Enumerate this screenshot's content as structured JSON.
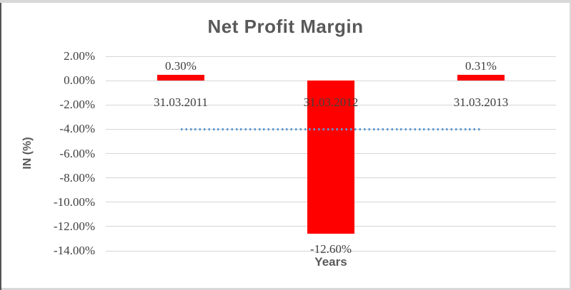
{
  "chart_data": {
    "type": "bar",
    "title": "Net Profit Margin",
    "xlabel": "Years",
    "ylabel": "IN (%)",
    "categories": [
      "31.03.2011",
      "31.03.2012",
      "31.03.2013"
    ],
    "values": [
      0.3,
      -12.6,
      0.31
    ],
    "data_labels": [
      "0.30%",
      "-12.60%",
      "0.31%"
    ],
    "yticks": [
      {
        "value": 2,
        "label": "2.00%"
      },
      {
        "value": 0,
        "label": "0.00%"
      },
      {
        "value": -2,
        "label": "-2.00%"
      },
      {
        "value": -4,
        "label": "-4.00%"
      },
      {
        "value": -6,
        "label": "-6.00%"
      },
      {
        "value": -8,
        "label": "-8.00%"
      },
      {
        "value": -10,
        "label": "-10.00%"
      },
      {
        "value": -12,
        "label": "-12.00%"
      },
      {
        "value": -14,
        "label": "-14.00%"
      }
    ],
    "ylim": [
      -14,
      2
    ],
    "grid": true,
    "legend": false,
    "bar_color": "#FF0000",
    "gridline_color": "#D6D6D6",
    "tick_text_color": "#404040",
    "title_color": "#595959",
    "axis_title_color": "#595959",
    "trendline": {
      "type": "linear",
      "style": "dotted",
      "color": "#5B9BD5",
      "y_value": -4.0,
      "span": "first-to-last-category"
    },
    "frame": {
      "top_color": "#D8D8D8",
      "left_color": "#555555",
      "right_color": "#D9D9D9",
      "bottom_color": "#D9D9D9"
    }
  }
}
